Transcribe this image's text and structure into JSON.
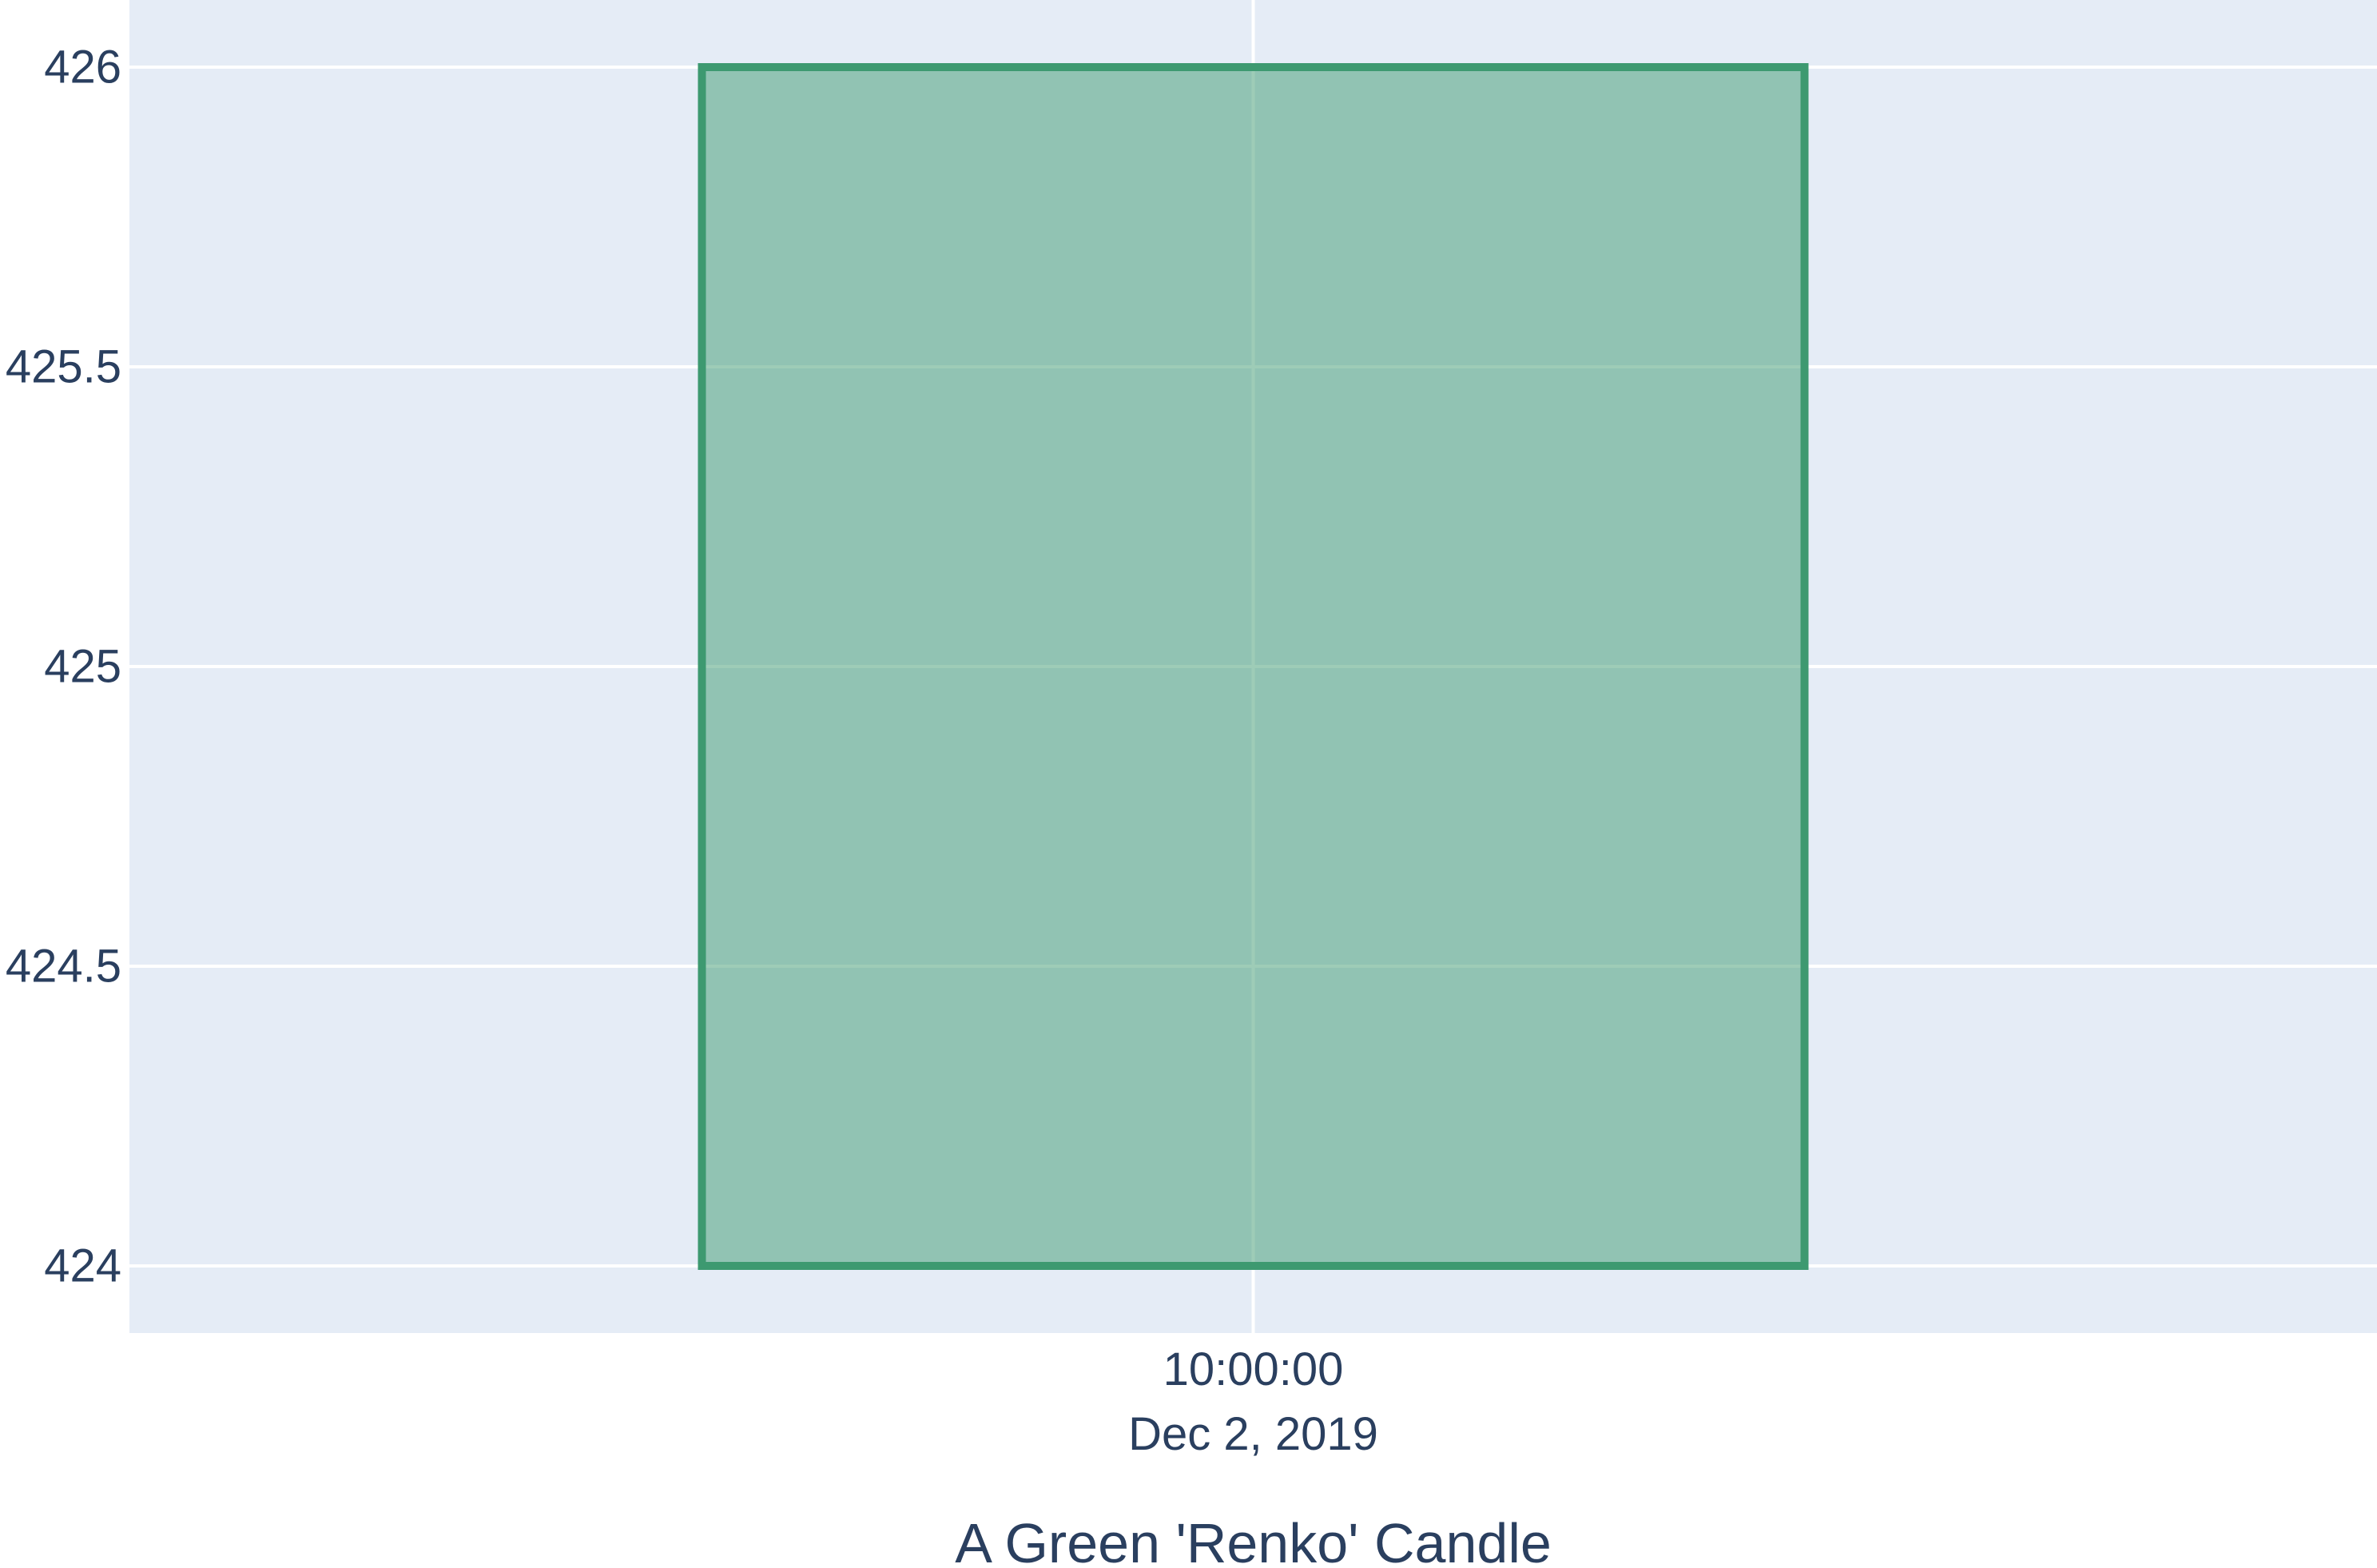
{
  "chart_data": {
    "type": "candlestick",
    "title": "",
    "xlabel": "A Green 'Renko' Candle",
    "ylabel": "",
    "ylim": [
      423.89,
      426.11
    ],
    "y_ticks": [
      424,
      424.5,
      425,
      425.5,
      426
    ],
    "y_tick_labels": [
      "424",
      "424.5",
      "425",
      "425.5",
      "426"
    ],
    "x_ticks": [
      "2019-12-02 10:00:00"
    ],
    "x_tick_labels": [
      {
        "time": "10:00:00",
        "date": "Dec 2, 2019"
      }
    ],
    "grid": true,
    "legend": "none",
    "candles": [
      {
        "x": "2019-12-02 10:00:00",
        "open": 424,
        "high": 426,
        "low": 424,
        "close": 426,
        "direction": "increasing"
      }
    ]
  },
  "colors": {
    "plot_background": "#e5ecf6",
    "paper_background": "#ffffff",
    "grid": "#ffffff",
    "increasing_line": "#3d9970",
    "increasing_fill": "#94c2b3",
    "text": "#2a3f5f"
  }
}
